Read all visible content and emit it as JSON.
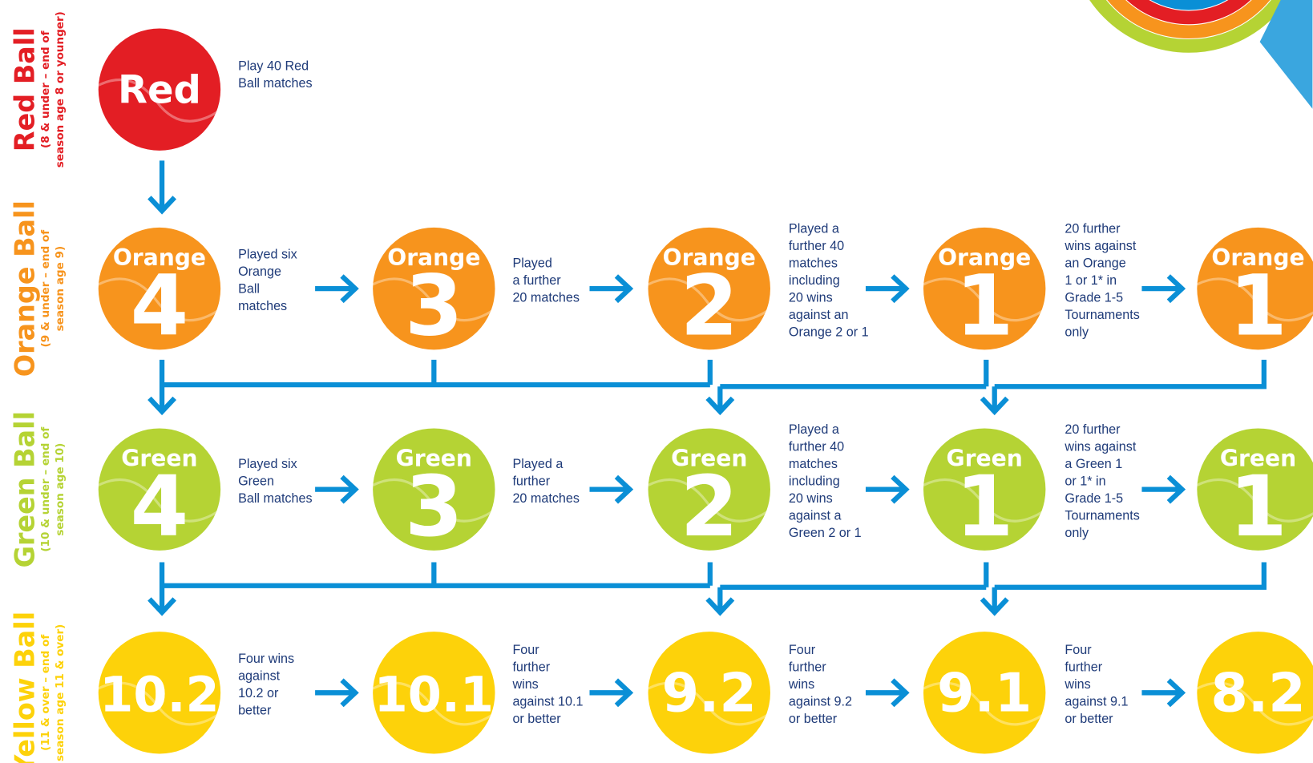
{
  "rows": [
    {
      "title": "Red Ball",
      "subtitle": [
        "(8 & under – end of",
        "season age 8 or younger)"
      ],
      "nodes": [
        {
          "label": "Red"
        }
      ],
      "steps": [
        [
          "Play 40 Red",
          "Ball matches"
        ]
      ]
    },
    {
      "title": "Orange Ball",
      "subtitle": [
        "(9 & under – end of",
        "season age 9)"
      ],
      "nodes": [
        {
          "label": "Orange",
          "number": "4"
        },
        {
          "label": "Orange",
          "number": "3"
        },
        {
          "label": "Orange",
          "number": "2"
        },
        {
          "label": "Orange",
          "number": "1"
        },
        {
          "label": "Orange",
          "number": "1"
        }
      ],
      "steps": [
        [
          "Played six",
          "Orange",
          "Ball",
          "matches"
        ],
        [
          "Played",
          "a further",
          "20 matches"
        ],
        [
          "Played a",
          "further 40",
          "matches",
          "including",
          "20 wins",
          "against an",
          "Orange 2 or 1"
        ],
        [
          "20 further",
          "wins against",
          "an Orange",
          "1 or 1* in",
          "Grade 1-5",
          "Tournaments",
          "only"
        ]
      ]
    },
    {
      "title": "Green Ball",
      "subtitle": [
        "(10 & under – end of",
        "season age 10)"
      ],
      "nodes": [
        {
          "label": "Green",
          "number": "4"
        },
        {
          "label": "Green",
          "number": "3"
        },
        {
          "label": "Green",
          "number": "2"
        },
        {
          "label": "Green",
          "number": "1"
        },
        {
          "label": "Green",
          "number": "1"
        }
      ],
      "steps": [
        [
          "Played six",
          "Green",
          "Ball matches"
        ],
        [
          "Played a",
          "further",
          "20 matches"
        ],
        [
          "Played a",
          "further 40",
          "matches",
          "including",
          "20 wins",
          "against a",
          "Green 2 or 1"
        ],
        [
          "20 further",
          "wins against",
          "a Green 1",
          "or 1* in",
          "Grade 1-5",
          "Tournaments",
          "only"
        ]
      ]
    },
    {
      "title": "Yellow Ball",
      "subtitle": [
        "(11 & over – end of",
        "season age 11 & over)"
      ],
      "nodes": [
        {
          "number": "10.2"
        },
        {
          "number": "10.1"
        },
        {
          "number": "9.2"
        },
        {
          "number": "9.1"
        },
        {
          "number": "8.2"
        }
      ],
      "steps": [
        [
          "Four wins",
          "against",
          "10.2 or",
          "better"
        ],
        [
          "Four",
          "further",
          "wins",
          "against 10.1",
          "or better"
        ],
        [
          "Four",
          "further",
          "wins",
          "against 9.2",
          "or better"
        ],
        [
          "Four",
          "further",
          "wins",
          "against 9.1",
          "or better"
        ]
      ]
    }
  ]
}
